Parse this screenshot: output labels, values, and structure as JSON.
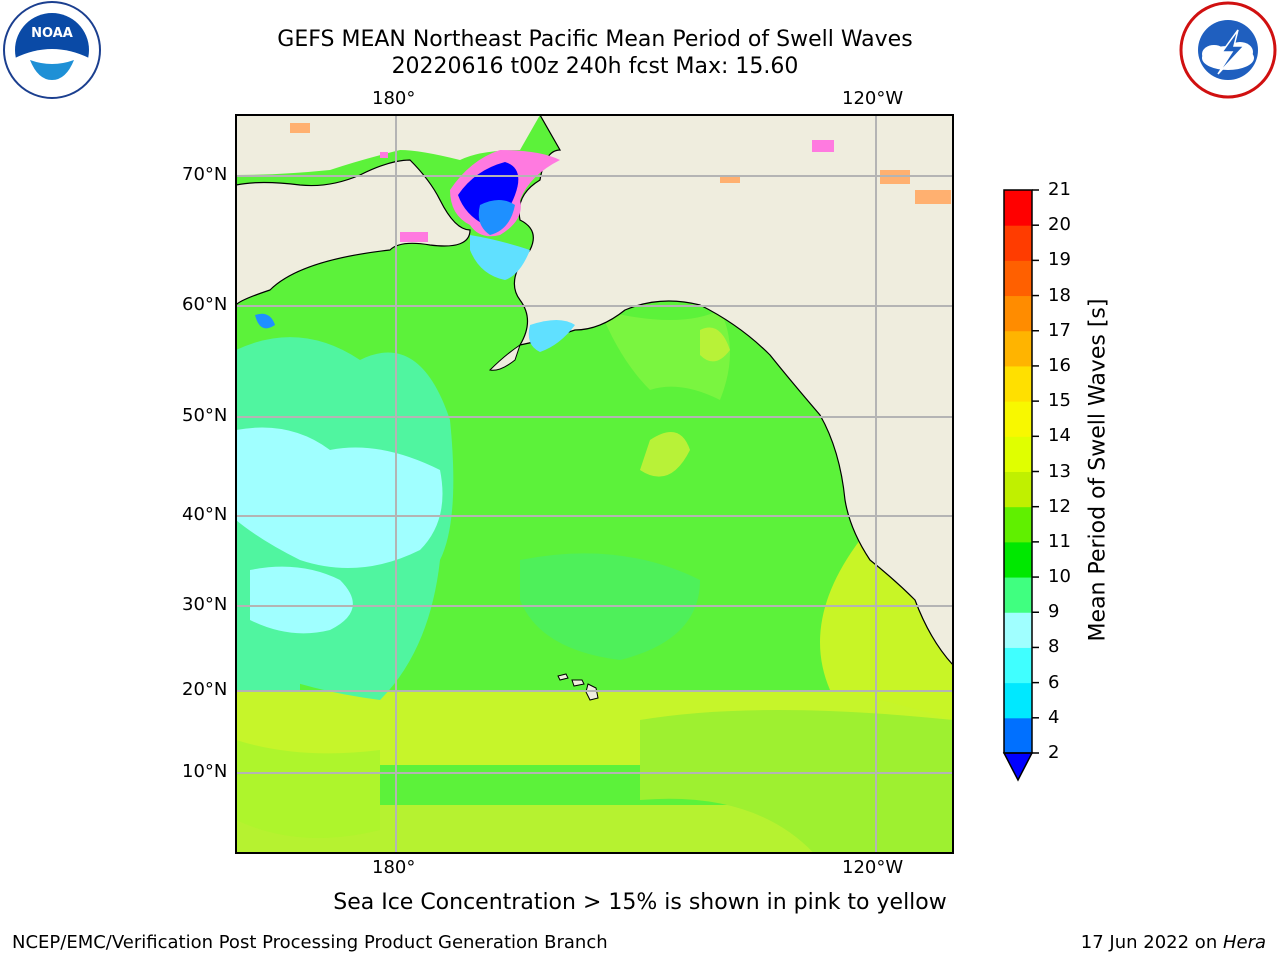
{
  "header": {
    "title_line1": "GEFS MEAN Northeast Pacific Mean Period of Swell Waves",
    "title_line2": "20220616 t00z 240h fcst   Max: 15.60"
  },
  "logos": {
    "left": {
      "text": "NOAA",
      "icon": "noaa-logo-icon"
    },
    "right": {
      "icon": "nws-logo-icon"
    }
  },
  "map": {
    "lon_labels": [
      "180°",
      "120°W"
    ],
    "lat_labels": [
      "70°N",
      "60°N",
      "50°N",
      "40°N",
      "30°N",
      "20°N",
      "10°N"
    ],
    "land_color": "#efedde",
    "grid_color": "#b4b4b4"
  },
  "colorbar": {
    "label": "Mean Period of Swell Waves [s]",
    "ticks": [
      "2",
      "4",
      "6",
      "8",
      "9",
      "10",
      "11",
      "12",
      "13",
      "14",
      "15",
      "16",
      "17",
      "18",
      "19",
      "20",
      "21"
    ],
    "colors": [
      "#0070ff",
      "#00e8ff",
      "#40ffff",
      "#a0ffff",
      "#40ff80",
      "#00e800",
      "#60f000",
      "#c0f000",
      "#e0ff00",
      "#f8f800",
      "#ffe000",
      "#ffb400",
      "#ff8c00",
      "#ff6000",
      "#ff3c00",
      "#ff0000"
    ],
    "under_color": "#0000ff"
  },
  "note": "Sea Ice Concentration > 15% is shown in pink to yellow",
  "footer": {
    "left": "NCEP/EMC/Verification Post Processing Product Generation Branch",
    "date": "17 Jun 2022 on ",
    "host": "Hera"
  }
}
